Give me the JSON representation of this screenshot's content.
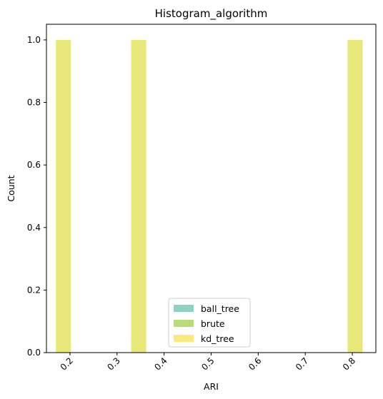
{
  "chart_data": {
    "type": "bar",
    "title": "Histogram_algorithm",
    "xlabel": "ARI",
    "ylabel": "Count",
    "xlim": [
      0.15,
      0.85
    ],
    "ylim": [
      0,
      1.05
    ],
    "xticks": [
      0.2,
      0.3,
      0.4,
      0.5,
      0.6,
      0.7,
      0.8
    ],
    "xtick_labels": [
      "0.2",
      "0.3",
      "0.4",
      "0.5",
      "0.6",
      "0.7",
      "0.8"
    ],
    "yticks": [
      0.0,
      0.2,
      0.4,
      0.6,
      0.8,
      1.0
    ],
    "ytick_labels": [
      "0.0",
      "0.2",
      "0.4",
      "0.6",
      "0.8",
      "1.0"
    ],
    "bin_width": 0.032,
    "series": [
      {
        "name": "ball_tree",
        "color": "#8fd1c4",
        "bins": [
          [
            0.17,
            1
          ],
          [
            0.33,
            1
          ],
          [
            0.79,
            1
          ]
        ]
      },
      {
        "name": "brute",
        "color": "#b9dc78",
        "bins": [
          [
            0.17,
            1
          ],
          [
            0.33,
            1
          ],
          [
            0.79,
            1
          ]
        ]
      },
      {
        "name": "kd_tree",
        "color": "#fbe97f",
        "bins": [
          [
            0.17,
            1
          ],
          [
            0.33,
            1
          ],
          [
            0.79,
            1
          ]
        ]
      }
    ],
    "overlap_color": "#e8e87a",
    "legend_position": "lower center",
    "grid": false
  }
}
